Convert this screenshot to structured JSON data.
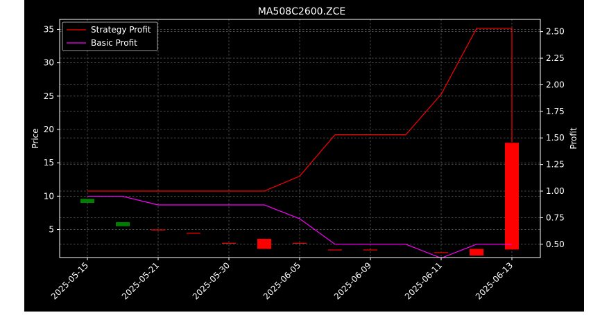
{
  "chart_data": {
    "type": "candlestick+line",
    "title": "MA508C2600.ZCE",
    "xlabel": "",
    "ylabel_left": "Price",
    "ylabel_right": "Profit",
    "ylim_left": [
      0.8,
      36.5
    ],
    "ylim_right": [
      0.375,
      2.615
    ],
    "yticks_left": [
      5,
      10,
      15,
      20,
      25,
      30,
      35
    ],
    "yticks_right": [
      0.5,
      0.75,
      1.0,
      1.25,
      1.5,
      1.75,
      2.0,
      2.25,
      2.5
    ],
    "ytick_labels_left": [
      "5",
      "10",
      "15",
      "20",
      "25",
      "30",
      "35"
    ],
    "ytick_labels_right": [
      "0.50",
      "0.75",
      "1.00",
      "1.25",
      "1.50",
      "1.75",
      "2.00",
      "2.25",
      "2.50"
    ],
    "x_tick_labels": [
      "2025-05-15",
      "2025-05-21",
      "2025-05-30",
      "2025-06-05",
      "2025-06-09",
      "2025-06-11",
      "2025-06-13"
    ],
    "x_tick_index": [
      0,
      2,
      4,
      6,
      8,
      10,
      12
    ],
    "grid": true,
    "legend_position": "top-left",
    "background": "#000000",
    "candles": [
      {
        "i": 0,
        "open": 9.6,
        "close": 9.0,
        "color": "#008000"
      },
      {
        "i": 1,
        "open": 6.1,
        "close": 5.5,
        "color": "#008000"
      },
      {
        "i": 2,
        "open": 5.0,
        "close": 5.0,
        "color": "#ff0000"
      },
      {
        "i": 3,
        "open": 4.5,
        "close": 4.5,
        "color": "#ff0000"
      },
      {
        "i": 4,
        "open": 3.0,
        "close": 3.0,
        "color": "#ff0000"
      },
      {
        "i": 5,
        "open": 2.1,
        "close": 3.6,
        "color": "#ff0000"
      },
      {
        "i": 6,
        "open": 3.0,
        "close": 3.0,
        "color": "#ff0000"
      },
      {
        "i": 7,
        "open": 2.0,
        "close": 2.0,
        "color": "#ff0000"
      },
      {
        "i": 8,
        "open": 2.0,
        "close": 2.0,
        "color": "#ff0000"
      },
      {
        "i": 10,
        "open": 1.6,
        "close": 1.6,
        "color": "#ff0000"
      },
      {
        "i": 11,
        "open": 1.1,
        "close": 2.1,
        "color": "#ff0000"
      },
      {
        "i": 12,
        "open": 2.0,
        "close": 18.0,
        "color": "#ff0000"
      }
    ],
    "series": [
      {
        "name": "Strategy Profit",
        "color": "#ff0000",
        "axis": "right",
        "x": [
          0,
          1,
          2,
          3,
          4,
          5,
          6,
          7,
          8,
          9,
          10,
          11,
          12,
          12
        ],
        "values": [
          1.0,
          1.0,
          1.0,
          1.0,
          1.0,
          1.0,
          1.14,
          1.53,
          1.53,
          1.53,
          1.91,
          2.53,
          2.53,
          1.46
        ]
      },
      {
        "name": "Basic Profit",
        "color": "#ff00ff",
        "axis": "right",
        "x": [
          0,
          1,
          2,
          3,
          4,
          5,
          6,
          7,
          8,
          9,
          10,
          11,
          12
        ],
        "values": [
          0.95,
          0.95,
          0.87,
          0.87,
          0.87,
          0.87,
          0.74,
          0.5,
          0.5,
          0.5,
          0.37,
          0.5,
          0.5
        ]
      }
    ]
  }
}
